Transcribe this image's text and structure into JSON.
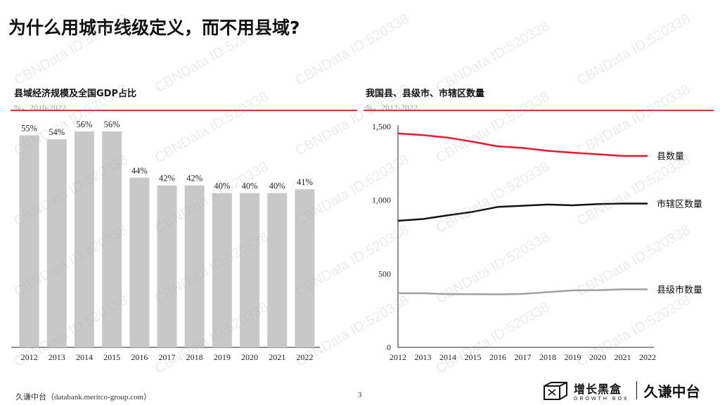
{
  "slide": {
    "title": "为什么用城市线级定义，而不用县域?",
    "source": "久谦中台（databank.meritco-group.com）",
    "source_cn": "久谦中台（",
    "source_en": "databank.meritco-group.com",
    "source_close": "）",
    "page_number": "3",
    "logo": {
      "brand_cn": "增长黑盒",
      "brand_en": "GROWTH BOX",
      "partner": "久谦中台"
    },
    "watermark_text": "CBNData ID:520338"
  },
  "colors": {
    "accent_red": "#e0312f",
    "bar_gray": "#c8c8c8",
    "line_red": "#e8192c",
    "line_black": "#111111",
    "line_gray": "#a0a0a0"
  },
  "chart_data": [
    {
      "type": "bar",
      "title": "县域经济规模及全国GDP占比",
      "subtitle": "%，2010-2022",
      "categories": [
        "2012",
        "2013",
        "2014",
        "2015",
        "2016",
        "2017",
        "2018",
        "2019",
        "2020",
        "2021",
        "2022"
      ],
      "values": [
        55,
        54,
        56,
        56,
        44,
        42,
        42,
        40,
        40,
        40,
        41
      ],
      "data_labels": [
        "55%",
        "54%",
        "56%",
        "56%",
        "44%",
        "42%",
        "42%",
        "40%",
        "40%",
        "40%",
        "41%"
      ],
      "ylim": [
        0,
        58
      ],
      "grid": false
    },
    {
      "type": "line",
      "title": "我国县、县级市、市辖区数量",
      "subtitle": "%，2012-2022",
      "x": [
        "2012",
        "2013",
        "2014",
        "2015",
        "2016",
        "2017",
        "2018",
        "2019",
        "2020",
        "2021",
        "2022"
      ],
      "yticks": [
        "0",
        "500",
        "1,000",
        "1,500"
      ],
      "ylim": [
        0,
        1500
      ],
      "grid": false,
      "legend": "right, labels at line ends",
      "series": [
        {
          "name": "县数量",
          "color": "#e8192c",
          "values": [
            1453,
            1442,
            1425,
            1397,
            1366,
            1355,
            1335,
            1323,
            1312,
            1301,
            1301
          ]
        },
        {
          "name": "市辖区数量",
          "color": "#111111",
          "values": [
            860,
            872,
            897,
            921,
            954,
            962,
            970,
            965,
            973,
            977,
            977
          ]
        },
        {
          "name": "县级市数量",
          "color": "#a0a0a0",
          "values": [
            368,
            368,
            361,
            361,
            360,
            363,
            375,
            387,
            388,
            394,
            394
          ]
        }
      ]
    }
  ]
}
